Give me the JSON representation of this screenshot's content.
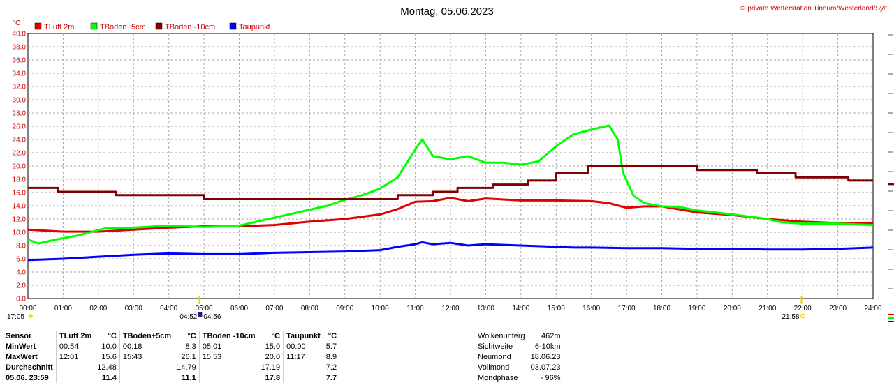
{
  "header": {
    "title": "Montag, 05.06.2023",
    "copyright": "© private Wetterstation Tinnum/Westerland/Sylt",
    "unit": "°C"
  },
  "legend": [
    {
      "label": "TLuft 2m",
      "color": "#e00000"
    },
    {
      "label": "TBoden+5cm",
      "color": "#00ff00"
    },
    {
      "label": "TBoden -10cm",
      "color": "#800000"
    },
    {
      "label": "Taupunkt",
      "color": "#0000ff"
    }
  ],
  "axis": {
    "y_ticks": [
      "0.0",
      "2.0",
      "4.0",
      "6.0",
      "8.0",
      "10.0",
      "12.0",
      "14.0",
      "16.0",
      "18.0",
      "20.0",
      "22.0",
      "24.0",
      "26.0",
      "28.0",
      "30.0",
      "32.0",
      "34.0",
      "36.0",
      "38.0",
      "40.0"
    ],
    "x_ticks": [
      "00:00",
      "01:00",
      "02:00",
      "03:00",
      "04:00",
      "05:00",
      "06:00",
      "07:00",
      "08:00",
      "09:00",
      "10:00",
      "11:00",
      "12:00",
      "13:00",
      "14:00",
      "15:00",
      "16:00",
      "17:00",
      "18:00",
      "19:00",
      "20:00",
      "21:00",
      "22:00",
      "23:00",
      "24:00"
    ]
  },
  "events": {
    "start_time": "17:05",
    "sunrise_a": "04:52",
    "sunrise_b": "04:56",
    "sunset": "21:58"
  },
  "chart_data": {
    "type": "line",
    "title": "Montag, 05.06.2023",
    "ylabel": "°C",
    "xlim": [
      0,
      24
    ],
    "ylim": [
      0,
      40
    ],
    "grid": true,
    "legend_position": "top-left",
    "series": [
      {
        "name": "TLuft 2m",
        "color": "#e00000",
        "x": [
          0,
          1,
          2,
          3,
          4,
          5,
          6,
          7,
          8,
          9,
          10,
          10.5,
          11,
          11.5,
          12,
          12.5,
          13,
          14,
          15,
          16,
          16.5,
          17,
          17.5,
          18,
          19,
          20,
          21,
          22,
          23,
          24
        ],
        "y": [
          10.4,
          10.1,
          10.1,
          10.4,
          10.7,
          10.9,
          10.9,
          11.1,
          11.6,
          12.0,
          12.7,
          13.5,
          14.6,
          14.7,
          15.2,
          14.7,
          15.1,
          14.8,
          14.8,
          14.7,
          14.4,
          13.7,
          13.9,
          13.9,
          13.0,
          12.6,
          12.0,
          11.6,
          11.4,
          11.4
        ]
      },
      {
        "name": "TBoden+5cm",
        "color": "#00ff00",
        "x": [
          0,
          0.3,
          0.8,
          1.4,
          2.2,
          3.0,
          4.0,
          5.0,
          6.0,
          6.5,
          7.5,
          8.5,
          9.0,
          9.5,
          10.0,
          10.5,
          11.0,
          11.2,
          11.5,
          12.0,
          12.5,
          13.0,
          13.5,
          14.0,
          14.5,
          15.0,
          15.5,
          16.0,
          16.5,
          16.75,
          16.9,
          17.2,
          17.5,
          18.0,
          18.5,
          19.0,
          20.0,
          21.0,
          21.4,
          22.0,
          23.0,
          24.0
        ],
        "y": [
          8.9,
          8.3,
          8.9,
          9.5,
          10.6,
          10.7,
          11.0,
          10.8,
          11.0,
          11.6,
          12.8,
          14.0,
          14.9,
          15.6,
          16.6,
          18.3,
          22.5,
          24.0,
          21.5,
          21.0,
          21.5,
          20.5,
          20.5,
          20.2,
          20.7,
          23.0,
          24.8,
          25.5,
          26.1,
          24.0,
          19.0,
          15.5,
          14.4,
          13.9,
          13.8,
          13.3,
          12.7,
          12.0,
          11.5,
          11.3,
          11.3,
          11.1
        ]
      },
      {
        "name": "TBoden -10cm",
        "color": "#800000",
        "x": [
          0,
          0.85,
          0.85,
          2.5,
          2.5,
          5.0,
          5.0,
          10.5,
          10.5,
          11.5,
          11.5,
          12.2,
          12.2,
          13.2,
          13.2,
          14.2,
          14.2,
          15.0,
          15.0,
          15.9,
          15.9,
          19.0,
          19.0,
          20.7,
          20.7,
          21.8,
          21.8,
          23.3,
          23.3,
          24.0
        ],
        "y": [
          16.7,
          16.7,
          16.1,
          16.1,
          15.6,
          15.6,
          15.0,
          15.0,
          15.6,
          15.6,
          16.1,
          16.1,
          16.7,
          16.7,
          17.2,
          17.2,
          17.8,
          17.8,
          18.9,
          18.9,
          20.0,
          20.0,
          19.4,
          19.4,
          18.9,
          18.9,
          18.3,
          18.3,
          17.8,
          17.8
        ]
      },
      {
        "name": "Taupunkt",
        "color": "#0000ff",
        "x": [
          0,
          1,
          2,
          3,
          4,
          5,
          6,
          7,
          8,
          9,
          10,
          10.5,
          11,
          11.2,
          11.5,
          12,
          12.5,
          13,
          13.5,
          14,
          14.5,
          15,
          15.5,
          16,
          17,
          18,
          19,
          20,
          21,
          22,
          23,
          24
        ],
        "y": [
          5.8,
          6.0,
          6.3,
          6.6,
          6.8,
          6.7,
          6.7,
          6.9,
          7.0,
          7.1,
          7.3,
          7.8,
          8.2,
          8.5,
          8.2,
          8.4,
          8.0,
          8.2,
          8.1,
          8.0,
          7.9,
          7.8,
          7.7,
          7.7,
          7.6,
          7.6,
          7.5,
          7.5,
          7.4,
          7.4,
          7.5,
          7.7
        ]
      }
    ]
  },
  "stats": {
    "headers": [
      "Sensor",
      "TLuft 2m",
      "°C",
      "TBoden+5cm",
      "°C",
      "TBoden -10cm",
      "°C",
      "Taupunkt",
      "°C"
    ],
    "rows": [
      {
        "label": "MinWert",
        "cells": [
          "00:54",
          "10.0",
          "00:18",
          "8.3",
          "05:01",
          "15.0",
          "00:00",
          "5.7"
        ]
      },
      {
        "label": "MaxWert",
        "cells": [
          "12:01",
          "15.6",
          "15:43",
          "26.1",
          "15:53",
          "20.0",
          "11:17",
          "8.9"
        ]
      },
      {
        "label": "Durchschnitt",
        "cells": [
          "",
          "12.48",
          "",
          "14.79",
          "",
          "17.19",
          "",
          "7.2"
        ]
      },
      {
        "label": "05.06. 23:59",
        "cells": [
          "",
          "11.4",
          "",
          "11.1",
          "",
          "17.8",
          "",
          "7.7"
        ]
      }
    ]
  },
  "info": [
    {
      "label": "Wolkenunterg",
      "value": "462m"
    },
    {
      "label": "Sichtweite",
      "value": "6-10km"
    },
    {
      "label": "Neumond",
      "value": "18.06.23"
    },
    {
      "label": "Vollmond",
      "value": "03.07.23"
    },
    {
      "label": "Mondphase",
      "value": "- 96%"
    }
  ]
}
